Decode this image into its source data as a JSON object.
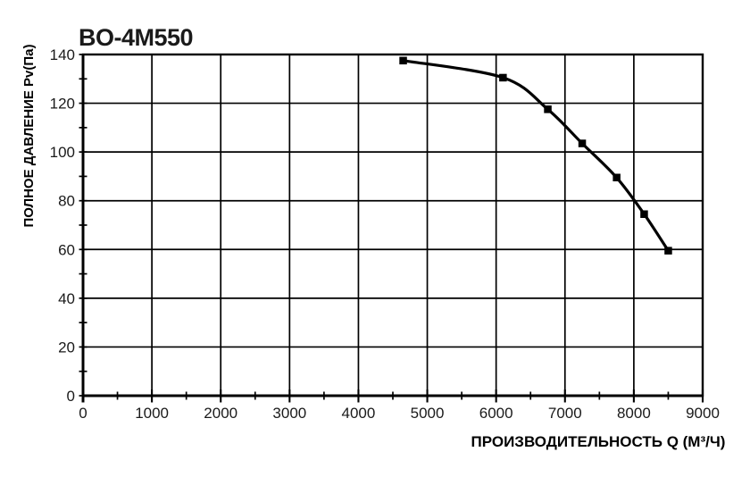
{
  "page": {
    "background": "#ffffff"
  },
  "title": {
    "text": "BO-4M550",
    "color": "#0d72bc"
  },
  "chart_data": {
    "type": "line",
    "title": "BO-4M550",
    "xlabel": "ПРОИЗВОДИТЕЛЬНОСТЬ  Q  (М³/Ч)",
    "ylabel": "ПОЛНОЕ ДАВЛЕНИЕ  Pv(Па)",
    "xlim": [
      0,
      9000
    ],
    "ylim": [
      0,
      140
    ],
    "grid": true,
    "legend_position": "none",
    "x_ticks": [
      0,
      1000,
      2000,
      3000,
      4000,
      5000,
      6000,
      7000,
      8000,
      9000
    ],
    "x_minor_ticks": [
      500,
      1500,
      2500,
      3500,
      4500,
      5500,
      6500,
      7500,
      8500
    ],
    "y_ticks": [
      0,
      20,
      40,
      60,
      80,
      100,
      120,
      140
    ],
    "y_minor_ticks": [
      10,
      30,
      50,
      70,
      90,
      110,
      130
    ],
    "line_color": "#000000",
    "grid_color": "#000000",
    "series": [
      {
        "name": "BO-4M550",
        "marker": "square",
        "color": "#000000",
        "points": [
          {
            "q": 4650,
            "pv": 137.5
          },
          {
            "q": 6100,
            "pv": 130.5
          },
          {
            "q": 6750,
            "pv": 117.5
          },
          {
            "q": 7250,
            "pv": 103.5
          },
          {
            "q": 7750,
            "pv": 89.5
          },
          {
            "q": 8150,
            "pv": 74.5
          },
          {
            "q": 8500,
            "pv": 59.5
          }
        ]
      }
    ]
  }
}
